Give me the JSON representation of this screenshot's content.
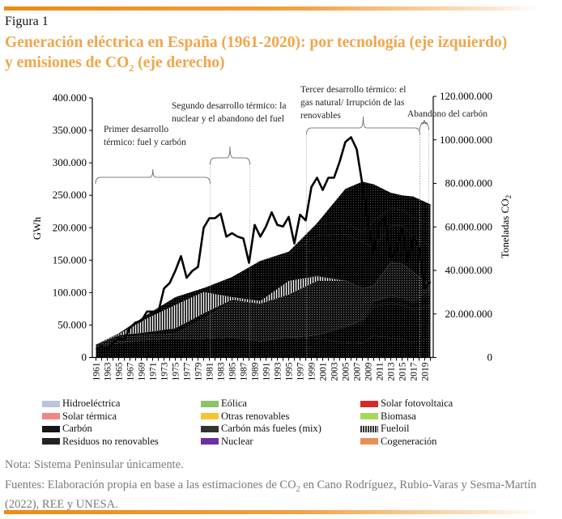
{
  "figure_label": "Figura 1",
  "title": {
    "line1": "Generación eléctrica en España (1961-2020): por tecnología (eje izquierdo)",
    "line2_pre": "y emisiones de CO",
    "line2_sub": "2",
    "line2_post": " (eje derecho)"
  },
  "colors": {
    "title": "#f2a54a",
    "accent_bar": "#ee8a12"
  },
  "chart_data": {
    "type": "area",
    "stacked": true,
    "x": [
      1961,
      1965,
      1970,
      1975,
      1980,
      1985,
      1990,
      1995,
      2000,
      2005,
      2008,
      2010,
      2013,
      2015,
      2017,
      2020
    ],
    "xlim": [
      1961,
      2020
    ],
    "x_tick_labels": [
      "1961",
      "1963",
      "1965",
      "1967",
      "1969",
      "1971",
      "1973",
      "1975",
      "1977",
      "1979",
      "1981",
      "1983",
      "1985",
      "1987",
      "1989",
      "1991",
      "1993",
      "1995",
      "1997",
      "1999",
      "2001",
      "2003",
      "2005",
      "2007",
      "2009",
      "2011",
      "2013",
      "2015",
      "2017",
      "2019"
    ],
    "ylabel": "GWh",
    "ylim": [
      0,
      400000
    ],
    "y_tick_labels": [
      "0",
      "50.000",
      "100.000",
      "150.000",
      "200.000",
      "250.000",
      "300.000",
      "350.000",
      "400.000"
    ],
    "y2label_pre": "Toneladas CO",
    "y2label_sub": "2",
    "y2lim": [
      0,
      120000000
    ],
    "y2_tick_labels": [
      "0",
      "20.000.000",
      "40.000.000",
      "60.000.000",
      "80.000.000",
      "100.000.000",
      "120.000.000"
    ],
    "grid": false,
    "legend_placement": "bottom",
    "series": [
      {
        "name": "Hidroeléctrica",
        "color": "#b9c4de",
        "values": [
          16000,
          22000,
          27000,
          29000,
          29000,
          31000,
          25000,
          31000,
          29000,
          23000,
          22000,
          34000,
          30000,
          27000,
          23000,
          29000
        ]
      },
      {
        "name": "Eólica",
        "color": "#8cc36a",
        "values": [
          0,
          0,
          0,
          0,
          0,
          0,
          0,
          0,
          5000,
          23000,
          31000,
          44000,
          52000,
          53000,
          49000,
          49000
        ]
      },
      {
        "name": "Biomasa",
        "color": "#a6d85a",
        "values": [
          0,
          0,
          0,
          0,
          0,
          0,
          0,
          0,
          1000,
          2000,
          3000,
          3000,
          3000,
          3000,
          3000,
          3000
        ]
      },
      {
        "name": "Solar fotovoltaica",
        "color": "#d42a2a",
        "values": [
          0,
          0,
          0,
          0,
          0,
          0,
          0,
          0,
          0,
          0,
          2000,
          6000,
          8000,
          7000,
          8000,
          18000
        ]
      },
      {
        "name": "Solar térmica",
        "color": "#f28585",
        "values": [
          0,
          0,
          0,
          0,
          0,
          0,
          0,
          0,
          0,
          0,
          0,
          0,
          2000,
          2000,
          3000,
          5000
        ]
      },
      {
        "name": "Carbón",
        "color": "#151515",
        "values": [
          3000,
          9000,
          8000,
          8000,
          31000,
          56000,
          58000,
          66000,
          83000,
          70000,
          48000,
          23000,
          51000,
          52000,
          45000,
          6000
        ]
      },
      {
        "name": "Carbón más fueles (mix)",
        "color": "#333333",
        "values": [
          1000,
          3000,
          4000,
          8000,
          8000,
          2000,
          0,
          0,
          0,
          0,
          0,
          0,
          0,
          0,
          0,
          0
        ]
      },
      {
        "name": "Fueloil",
        "color": "#555555",
        "values": [
          0,
          2000,
          21000,
          36000,
          33000,
          4000,
          4000,
          21000,
          7000,
          0,
          0,
          0,
          0,
          0,
          0,
          0
        ]
      },
      {
        "name": "Residuos no renovables",
        "color": "#222222",
        "values": [
          0,
          0,
          0,
          0,
          0,
          0,
          0,
          0,
          1000,
          1000,
          1000,
          1000,
          1000,
          1000,
          1000,
          1000
        ]
      },
      {
        "name": "Nuclear",
        "color": "#6a2fa3",
        "values": [
          0,
          1000,
          6000,
          12000,
          6000,
          31000,
          62000,
          41000,
          62000,
          71000,
          71000,
          57000,
          56000,
          58000,
          54000,
          61000
        ]
      },
      {
        "name": "Cogeneración",
        "color": "#e39158",
        "values": [
          0,
          0,
          0,
          0,
          0,
          0,
          0,
          4000,
          17000,
          19000,
          15000,
          43000,
          27000,
          25000,
          29000,
          35000
        ]
      },
      {
        "name": "Otras renovables",
        "color": "#f8c42e",
        "values": [
          0,
          0,
          0,
          0,
          0,
          0,
          0,
          0,
          2000,
          51000,
          78000,
          56000,
          24000,
          22000,
          33000,
          29000
        ]
      }
    ],
    "emissions": {
      "axis": "right",
      "color": "#000000",
      "x": [
        1961,
        1962,
        1963,
        1964,
        1965,
        1966,
        1967,
        1968,
        1969,
        1970,
        1971,
        1972,
        1973,
        1974,
        1975,
        1976,
        1977,
        1978,
        1979,
        1980,
        1981,
        1982,
        1983,
        1984,
        1985,
        1986,
        1987,
        1988,
        1989,
        1990,
        1991,
        1992,
        1993,
        1994,
        1995,
        1996,
        1997,
        1998,
        1999,
        2000,
        2001,
        2002,
        2003,
        2004,
        2005,
        2006,
        2007,
        2008,
        2009,
        2010,
        2011,
        2012,
        2013,
        2014,
        2015,
        2016,
        2017,
        2018,
        2019,
        2020
      ],
      "values": [
        3700000,
        5000000,
        3700000,
        6800000,
        8700000,
        8100000,
        13700000,
        16100000,
        16800000,
        21100000,
        21100000,
        20800000,
        31700000,
        34200000,
        39800000,
        46600000,
        36600000,
        39800000,
        41600000,
        59600000,
        64000000,
        64000000,
        66100000,
        55500000,
        57100000,
        55500000,
        54700000,
        43500000,
        60900000,
        55500000,
        60200000,
        66700000,
        60900000,
        60200000,
        64600000,
        52400000,
        65600000,
        63000000,
        78300000,
        82600000,
        77000000,
        82600000,
        82600000,
        90100000,
        99000000,
        101200000,
        95700000,
        79500000,
        61500000,
        47800000,
        61500000,
        64200000,
        46000000,
        49100000,
        59300000,
        44100000,
        55300000,
        50300000,
        31700000,
        34800000
      ]
    },
    "annotations": [
      {
        "lines": [
          "Primer desarrollo",
          "térmico: fuel y carbón"
        ],
        "period": [
          1961,
          1981
        ]
      },
      {
        "lines": [
          "Segundo desarrollo térmico: la",
          "nuclear y el abandono del fuel"
        ],
        "period": [
          1981,
          1988
        ]
      },
      {
        "lines": [
          "Tercer desarrollo térmico: el",
          "gas natural/ Irrupción de las",
          "renovables"
        ],
        "period": [
          1998,
          2018
        ]
      },
      {
        "lines": [
          "Abandono del carbón"
        ],
        "period": [
          2018,
          2020
        ]
      }
    ]
  },
  "legend": [
    {
      "label": "Hidroeléctrica",
      "series": 0
    },
    {
      "label": "Eólica",
      "series": 1
    },
    {
      "label": "Solar fotovoltaica",
      "series": 3
    },
    {
      "label": "Solar térmica",
      "series": 4
    },
    {
      "label": "Otras renovables",
      "series": 11
    },
    {
      "label": "Biomasa",
      "series": 2
    },
    {
      "label": "Carbón",
      "series": 5
    },
    {
      "label": "Carbón más fueles (mix)",
      "series": 6
    },
    {
      "label": "Fueloil",
      "series": 7
    },
    {
      "label": "Residuos no renovables",
      "series": 8
    },
    {
      "label": "Nuclear",
      "series": 9
    },
    {
      "label": "Cogeneración",
      "series": 10
    }
  ],
  "note": "Nota: Sistema Peninsular únicamente.",
  "sources": {
    "pre": "Fuentes: Elaboración propia en base a las estimaciones de CO",
    "sub": "2",
    "post": " en Cano Rodríguez, Rubio-Varas y Sesma-Martín (2022), REE y UNESA."
  }
}
